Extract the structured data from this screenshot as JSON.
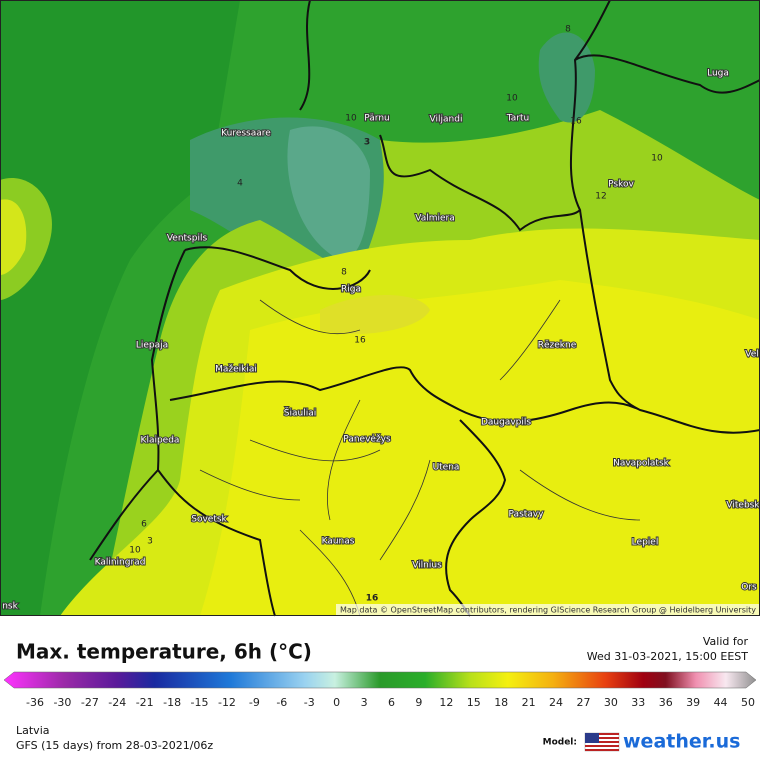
{
  "map": {
    "cities": [
      "Pärnu",
      "Viljandi",
      "Tartu",
      "Luga",
      "Kuressaare",
      "Pskov",
      "Ventspils",
      "Valmiera",
      "Riga",
      "Liepaja",
      "Rēzekne",
      "Mažeikiai",
      "Šiauliai",
      "Klaipeda",
      "Panevėžys",
      "Daugavpils",
      "Navapolatsk",
      "Utena",
      "Vitebsk",
      "Sovetsk",
      "Pastavy",
      "Kaunas",
      "Lepiel",
      "Vilnius",
      "Kaliningrad",
      "Ors",
      "Vel",
      "nsk"
    ],
    "contour_labels": [
      "10",
      "3",
      "8",
      "10",
      "16",
      "10",
      "12",
      "4",
      "8",
      "16",
      "6",
      "3",
      "10",
      "16"
    ],
    "attribution": "Map data © OpenStreetMap contributors, rendering GIScience Research Group @ Heidelberg University"
  },
  "legend": {
    "title": "Max. temperature, 6h (°C)",
    "valid_label": "Valid for",
    "valid_time": "Wed 31-03-2021, 15:00 EEST",
    "ticks": [
      -36,
      -30,
      -27,
      -24,
      -21,
      -18,
      -15,
      -12,
      -9,
      -6,
      -3,
      0,
      3,
      6,
      9,
      12,
      15,
      18,
      21,
      24,
      27,
      30,
      33,
      36,
      39,
      44,
      50
    ],
    "region": "Latvia",
    "run": "GFS (15 days) from 28-03-2021/06z",
    "model_label": "Model:",
    "brand": "weather.us"
  }
}
